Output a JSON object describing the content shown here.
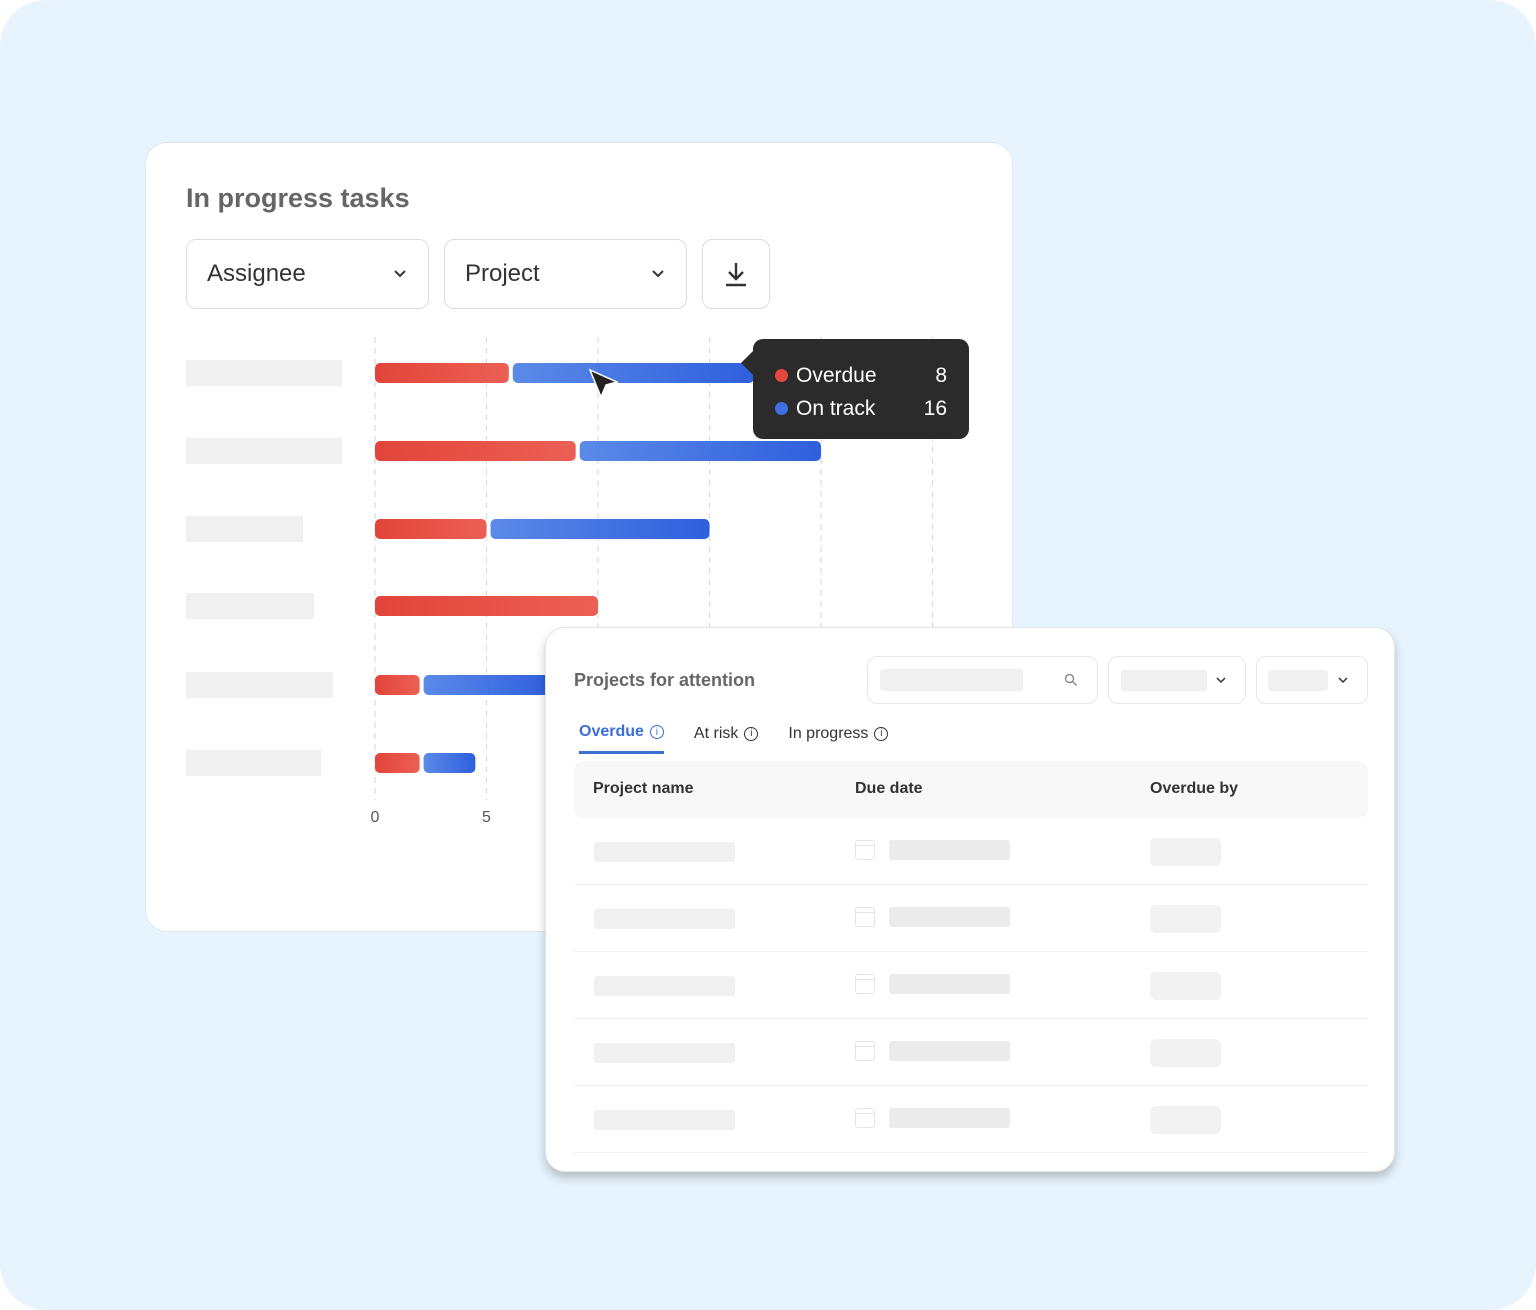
{
  "card": {
    "title": "In progress tasks",
    "assignee_label": "Assignee",
    "project_label": "Project",
    "download_icon": "download-icon"
  },
  "chart_data": {
    "type": "bar",
    "orientation": "horizontal",
    "stacked": true,
    "categories": [
      "",
      "",
      "",
      "",
      "",
      ""
    ],
    "series": [
      {
        "name": "Overdue",
        "color": "#e5473d",
        "values": [
          6,
          9,
          5,
          10,
          2,
          2
        ]
      },
      {
        "name": "On track",
        "color": "#3f6fe0",
        "values": [
          11,
          11,
          10,
          0,
          6,
          2.5
        ]
      }
    ],
    "xticks": [
      "0",
      "5"
    ],
    "xlim": [
      0,
      25
    ],
    "grid": true,
    "gridlines": [
      0,
      5,
      10,
      15,
      20,
      25
    ]
  },
  "tooltip": {
    "items": [
      {
        "label": "Overdue",
        "value": "8",
        "color": "#e5473d"
      },
      {
        "label": "On track",
        "value": "16",
        "color": "#3f6fe0"
      }
    ]
  },
  "panel": {
    "title": "Projects for attention",
    "tabs": [
      {
        "label": "Overdue",
        "active": true
      },
      {
        "label": "At risk",
        "active": false
      },
      {
        "label": "In progress",
        "active": false
      }
    ],
    "columns": [
      "Project name",
      "Due date",
      "Overdue by"
    ],
    "accent": "#3b6fd4"
  }
}
